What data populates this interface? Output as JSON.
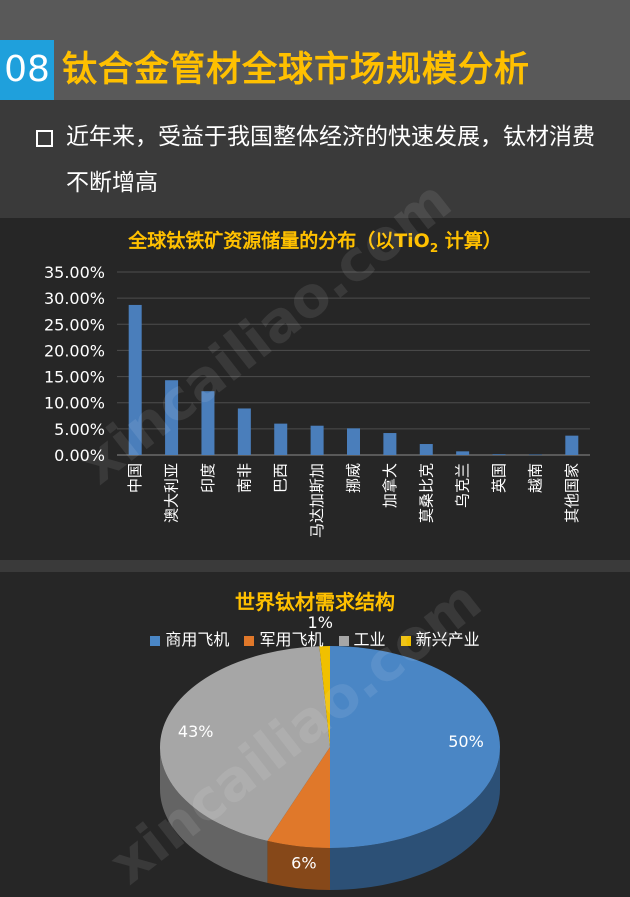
{
  "header": {
    "number": "08",
    "title": "钛合金管材全球市场规模分析"
  },
  "intro": {
    "text": "近年来，受益于我国整体经济的快速发展，钛材消费不断增高"
  },
  "watermark": "xincailiao.com",
  "colors": {
    "accent": "#1fa0dc",
    "title": "#ffc000",
    "bar": "#4a7ebb"
  },
  "chart_data": [
    {
      "type": "bar",
      "title": "全球钛铁矿资源储量的分布（以TiO",
      "title_sub": "2",
      "title_end": " 计算）",
      "categories": [
        "中国",
        "澳大利亚",
        "印度",
        "南非",
        "巴西",
        "马达加斯加",
        "挪威",
        "加拿大",
        "莫桑比克",
        "乌克兰",
        "英国",
        "越南",
        "其他国家"
      ],
      "values": [
        28.7,
        14.3,
        12.2,
        8.9,
        6.0,
        5.6,
        5.1,
        4.2,
        2.1,
        0.7,
        0.15,
        0.1,
        3.7
      ],
      "ylim": [
        0,
        35
      ],
      "yticks": [
        "0.00%",
        "5.00%",
        "10.00%",
        "15.00%",
        "20.00%",
        "25.00%",
        "30.00%",
        "35.00%"
      ],
      "grid": true
    },
    {
      "type": "pie",
      "title": "世界钛材需求结构",
      "legend_position": "top",
      "slices": [
        {
          "name": "商用飞机",
          "value": 50,
          "label": "50%",
          "color": "#4a86c5"
        },
        {
          "name": "军用飞机",
          "value": 6,
          "label": "6%",
          "color": "#e0782a"
        },
        {
          "name": "工业",
          "value": 43,
          "label": "43%",
          "color": "#a6a6a6"
        },
        {
          "name": "新兴产业",
          "value": 1,
          "label": "1%",
          "color": "#f0c000"
        }
      ]
    }
  ]
}
